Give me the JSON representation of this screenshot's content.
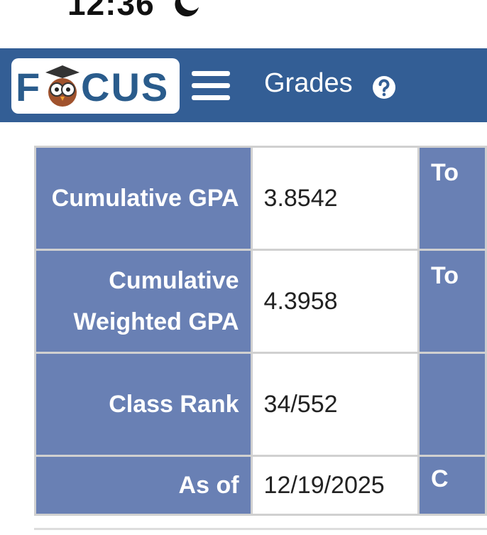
{
  "status": {
    "time": "12:36"
  },
  "header": {
    "logo_left": "F",
    "logo_right": "CUS",
    "title": "Grades"
  },
  "table": {
    "rows": [
      {
        "label": "Cumulative GPA",
        "value": "3.8542",
        "right": "To"
      },
      {
        "label": "Cumulative Weighted GPA",
        "value": "4.3958",
        "right": "To"
      },
      {
        "label": "Class Rank",
        "value": "34/552"
      },
      {
        "label": "As of",
        "value": "12/19/2025",
        "right": "C"
      }
    ]
  }
}
